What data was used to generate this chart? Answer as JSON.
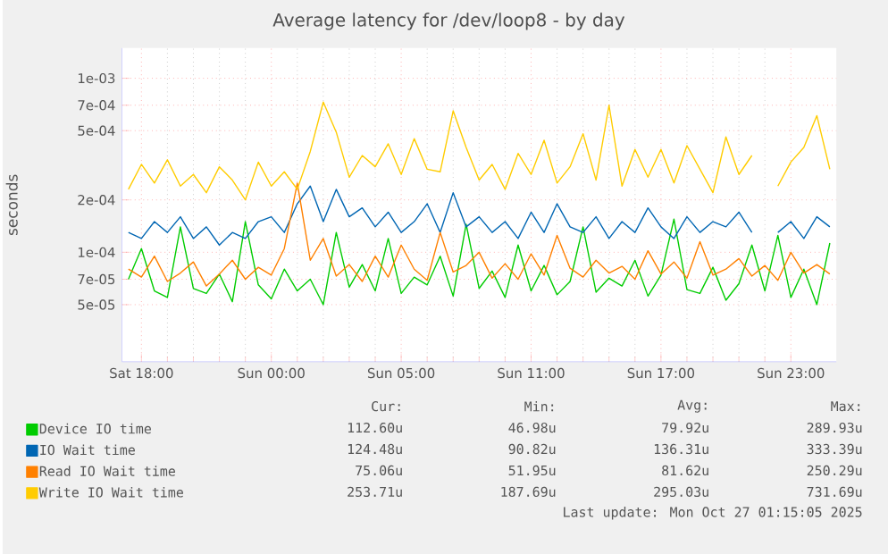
{
  "chart_data": {
    "type": "line",
    "title": "Average latency for /dev/loop8 - by day",
    "ylabel": "seconds",
    "categories": [
      null,
      "Sat 18:00",
      null,
      null,
      null,
      null,
      null,
      null,
      null,
      null,
      null,
      "Sun 00:00",
      null,
      null,
      null,
      null,
      null,
      null,
      null,
      null,
      null,
      "Sun 05:00",
      null,
      null,
      null,
      null,
      null,
      null,
      null,
      null,
      null,
      "Sun 11:00",
      null,
      null,
      null,
      null,
      null,
      null,
      null,
      null,
      null,
      "Sun 17:00",
      null,
      null,
      null,
      null,
      null,
      null,
      null,
      null,
      null,
      "Sun 23:00",
      null,
      null,
      null
    ],
    "series": [
      {
        "name": "Device IO time",
        "color": "#00cc00",
        "values": [
          7e-05,
          0.000105,
          6e-05,
          5.5e-05,
          0.00014,
          6.2e-05,
          5.8e-05,
          7.5e-05,
          5.2e-05,
          0.00015,
          6.5e-05,
          5.4e-05,
          8e-05,
          6e-05,
          7e-05,
          5e-05,
          0.00013,
          6.3e-05,
          8.5e-05,
          6e-05,
          0.00012,
          5.8e-05,
          7.2e-05,
          6.5e-05,
          9.5e-05,
          5.6e-05,
          0.000145,
          6.2e-05,
          7.8e-05,
          5.5e-05,
          0.00011,
          6e-05,
          8.4e-05,
          5.7e-05,
          6.8e-05,
          0.00014,
          5.9e-05,
          7.1e-05,
          6.4e-05,
          9e-05,
          5.6e-05,
          7.4e-05,
          0.000155,
          6.1e-05,
          5.8e-05,
          8.2e-05,
          5.3e-05,
          6.6e-05,
          0.00011,
          6e-05,
          0.000125,
          5.5e-05,
          8e-05,
          5e-05,
          0.000113
        ]
      },
      {
        "name": "IO Wait time",
        "color": "#0066b3",
        "values": [
          0.00013,
          0.00012,
          0.00015,
          0.00013,
          0.00016,
          0.00012,
          0.00014,
          0.00011,
          0.00013,
          0.00012,
          0.00015,
          0.00016,
          0.00013,
          0.00019,
          0.00024,
          0.00015,
          0.00023,
          0.00016,
          0.00018,
          0.00014,
          0.00017,
          0.00013,
          0.00015,
          0.00019,
          0.00013,
          0.00022,
          0.00014,
          0.00016,
          0.00013,
          0.00015,
          0.00012,
          0.00017,
          0.00013,
          0.00019,
          0.00014,
          0.00013,
          0.00016,
          0.00012,
          0.00015,
          0.00013,
          0.00018,
          0.00014,
          0.00012,
          0.00016,
          0.00013,
          0.00015,
          0.00014,
          0.00017,
          0.00013,
          null,
          0.00013,
          0.00015,
          0.00012,
          0.00016,
          0.00014
        ]
      },
      {
        "name": "Read IO Wait time",
        "color": "#ff8000",
        "values": [
          8e-05,
          7.2e-05,
          9.5e-05,
          6.8e-05,
          7.6e-05,
          8.8e-05,
          6.4e-05,
          7.5e-05,
          9e-05,
          7e-05,
          8.2e-05,
          7.4e-05,
          0.000105,
          0.00025,
          9e-05,
          0.00012,
          7.3e-05,
          8.5e-05,
          6.8e-05,
          9.5e-05,
          7.2e-05,
          0.00011,
          8e-05,
          6.9e-05,
          0.00013,
          7.7e-05,
          8.4e-05,
          0.0001,
          7.1e-05,
          8.6e-05,
          7e-05,
          9.8e-05,
          7.4e-05,
          0.000125,
          8.1e-05,
          7.2e-05,
          9e-05,
          7.6e-05,
          8.3e-05,
          7e-05,
          0.000102,
          7.5e-05,
          8.8e-05,
          7.1e-05,
          0.000115,
          7.4e-05,
          8e-05,
          9.2e-05,
          7.3e-05,
          8.4e-05,
          6.9e-05,
          0.0001,
          7.6e-05,
          8.5e-05,
          7.5e-05
        ]
      },
      {
        "name": "Write IO Wait time",
        "color": "#ffcc00",
        "values": [
          0.00023,
          0.00032,
          0.00025,
          0.00034,
          0.00024,
          0.00028,
          0.00022,
          0.00031,
          0.00026,
          0.0002,
          0.00033,
          0.00024,
          0.00029,
          0.00023,
          0.00038,
          0.00073,
          0.00049,
          0.00027,
          0.00036,
          0.00031,
          0.00042,
          0.00028,
          0.00045,
          0.0003,
          0.00029,
          0.00065,
          0.0004,
          0.00026,
          0.00032,
          0.00023,
          0.00037,
          0.00028,
          0.00044,
          0.00025,
          0.00031,
          0.00048,
          0.00026,
          0.0007,
          0.00024,
          0.00039,
          0.00027,
          0.00039,
          0.00025,
          0.00041,
          0.0003,
          0.00022,
          0.00046,
          0.00028,
          0.00036,
          null,
          0.00024,
          0.00033,
          0.0004,
          0.00061,
          0.0003
        ]
      }
    ],
    "ylim": [
      2.35e-05,
      0.00149
    ],
    "yticks": [
      {
        "value": 5e-05,
        "label": "5e-05"
      },
      {
        "value": 7e-05,
        "label": "7e-05"
      },
      {
        "value": 0.0001,
        "label": "1e-04"
      },
      {
        "value": 0.0002,
        "label": "2e-04"
      },
      {
        "value": 0.0005,
        "label": "5e-04"
      },
      {
        "value": 0.0007,
        "label": "7e-04"
      },
      {
        "value": 0.001,
        "label": "1e-03"
      }
    ],
    "log": "y",
    "grid": true,
    "legend": "bottom",
    "marker": "none",
    "line_style": "solid",
    "annotations": [
      "Cur:",
      "Min:",
      "Avg:",
      "Max:",
      "112.60u",
      "46.98u",
      "79.92u",
      "289.93u",
      "124.48u",
      "90.82u",
      "136.31u",
      "333.39u",
      "75.06u",
      "51.95u",
      "81.62u",
      "250.29u",
      "253.71u",
      "187.69u",
      "295.03u",
      "731.69u",
      "Last update: Mon Oct 27 01:15:05 2025"
    ]
  }
}
